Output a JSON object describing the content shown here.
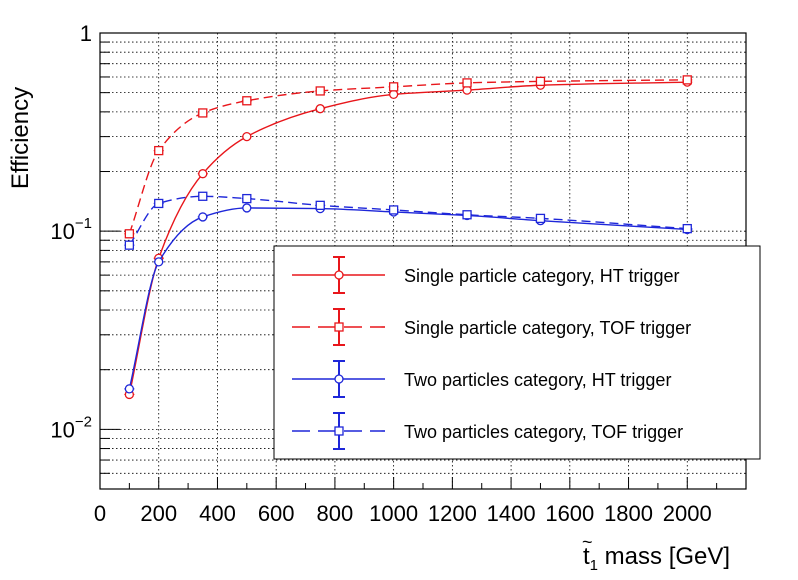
{
  "chart_data": {
    "type": "line",
    "title": "",
    "xlabel": "t̃₁ mass [GeV]",
    "xlabel_main": "t",
    "xlabel_tilde": "~",
    "xlabel_sub": "1",
    "xlabel_rest": " mass [GeV]",
    "ylabel": "Efficiency",
    "xlim": [
      0,
      2200
    ],
    "ylim": [
      0.005,
      1
    ],
    "yscale": "log",
    "grid": true,
    "legend_position": "bottom-right",
    "x_ticks": [
      0,
      200,
      400,
      600,
      800,
      1000,
      1200,
      1400,
      1600,
      1800,
      2000
    ],
    "y_tick_labels": [
      {
        "value": 1,
        "base": "1",
        "exp": ""
      },
      {
        "value": 0.1,
        "base": "10",
        "exp": "−1"
      },
      {
        "value": 0.01,
        "base": "10",
        "exp": "−2"
      }
    ],
    "x": [
      100,
      200,
      350,
      500,
      750,
      1000,
      1250,
      1500,
      2000
    ],
    "series": [
      {
        "name": "Single particle category, HT trigger",
        "color": "#e8161b",
        "marker": "circle",
        "dashed": false,
        "values": [
          0.015,
          0.073,
          0.195,
          0.3,
          0.415,
          0.49,
          0.515,
          0.545,
          0.565
        ]
      },
      {
        "name": "Single particle category, TOF trigger",
        "color": "#e8161b",
        "marker": "square",
        "dashed": true,
        "values": [
          0.097,
          0.255,
          0.395,
          0.455,
          0.51,
          0.535,
          0.56,
          0.57,
          0.58
        ]
      },
      {
        "name": "Two particles category, HT trigger",
        "color": "#1e27d9",
        "marker": "circle",
        "dashed": false,
        "values": [
          0.016,
          0.07,
          0.118,
          0.131,
          0.13,
          0.125,
          0.12,
          0.113,
          0.102
        ]
      },
      {
        "name": "Two particles category, TOF trigger",
        "color": "#1e27d9",
        "marker": "square",
        "dashed": true,
        "values": [
          0.085,
          0.138,
          0.15,
          0.146,
          0.135,
          0.128,
          0.121,
          0.116,
          0.103
        ]
      }
    ]
  }
}
